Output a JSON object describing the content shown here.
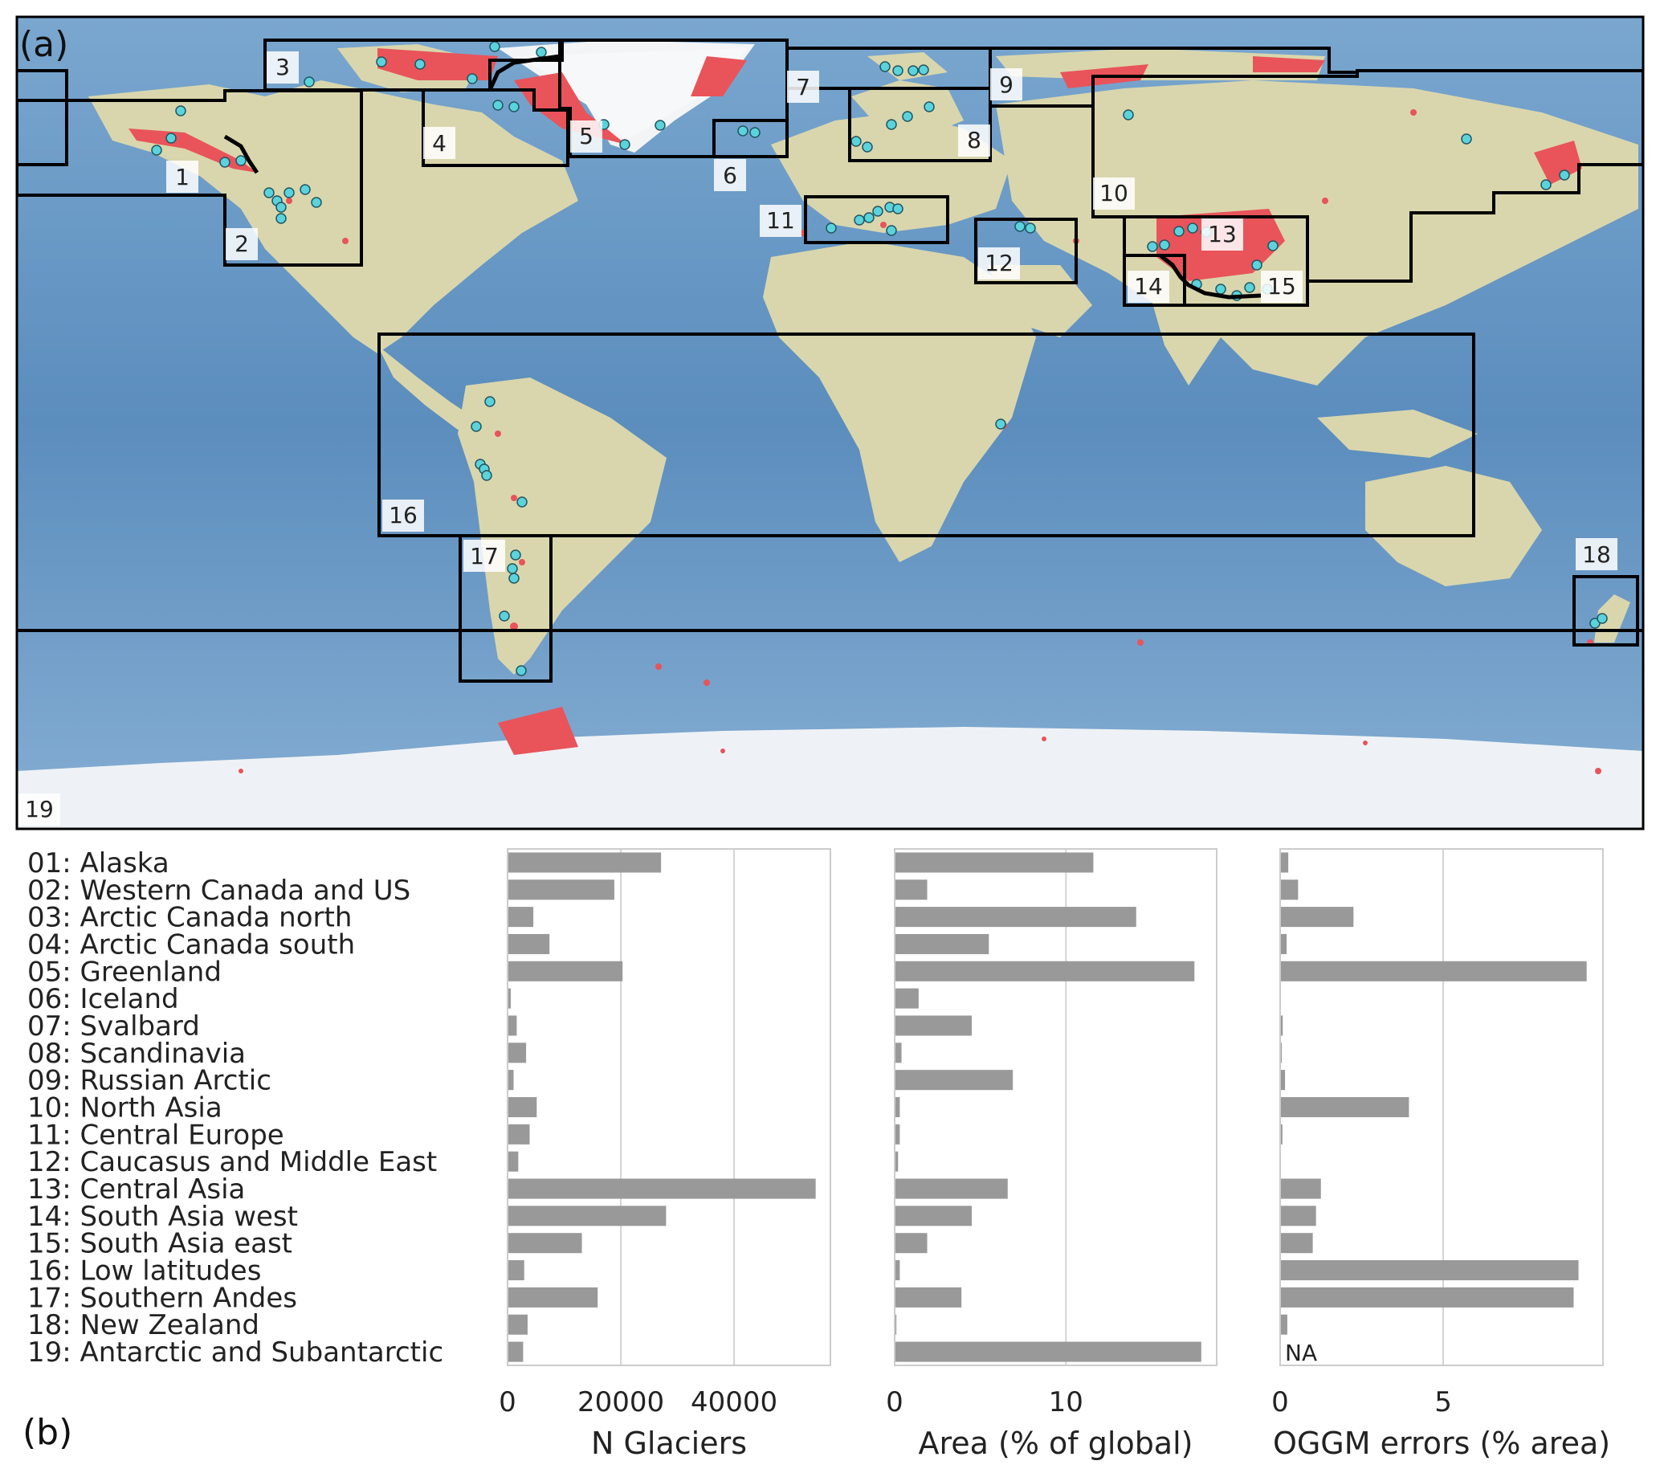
{
  "panel_a_label": "(a)",
  "panel_b_label": "(b)",
  "map_regions": [
    "1",
    "2",
    "3",
    "4",
    "5",
    "6",
    "7",
    "8",
    "9",
    "10",
    "11",
    "12",
    "13",
    "14",
    "15",
    "16",
    "17",
    "18",
    "19"
  ],
  "colors": {
    "ocean": "#5f8fbd",
    "land": "#d8d7b0",
    "ice": "#eef2f6",
    "glacier": "#e8545a",
    "site": "#5ad3dc",
    "bar": "#999999",
    "grid": "#d4d4d4",
    "frame": "#cccccc"
  },
  "chart_data": {
    "type": "bar",
    "orientation": "horizontal",
    "categories": [
      "01: Alaska",
      "02: Western Canada and US",
      "03: Arctic Canada north",
      "04: Arctic Canada south",
      "05: Greenland",
      "06: Iceland",
      "07: Svalbard",
      "08: Scandinavia",
      "09: Russian Arctic",
      "10: North Asia",
      "11: Central Europe",
      "12: Caucasus and Middle East",
      "13: Central Asia",
      "14: South Asia  west",
      "15: South Asia east",
      "16: Low latitudes",
      "17: Southern Andes",
      "18: New Zealand",
      "19: Antarctic and Subantarctic"
    ],
    "series": [
      {
        "name": "N Glaciers",
        "xlabel": "N Glaciers",
        "xlim": [
          0,
          57000
        ],
        "ticks": [
          0,
          20000,
          40000
        ],
        "tick_labels": [
          "0",
          "20000",
          "40000"
        ],
        "values": [
          27100,
          18850,
          4550,
          7400,
          20300,
          570,
          1620,
          3270,
          1070,
          5150,
          3900,
          1890,
          54400,
          27990,
          13120,
          2940,
          15910,
          3540,
          2750
        ]
      },
      {
        "name": "Area (% of global)",
        "xlabel": "Area (% of global)",
        "xlim": [
          0,
          18.8
        ],
        "ticks": [
          0,
          10
        ],
        "tick_labels": [
          "0",
          "10"
        ],
        "values": [
          11.6,
          1.9,
          14.1,
          5.5,
          17.5,
          1.4,
          4.5,
          0.4,
          6.9,
          0.3,
          0.3,
          0.2,
          6.6,
          4.5,
          1.9,
          0.3,
          3.9,
          0.1,
          17.9
        ]
      },
      {
        "name": "OGGM errors (% area)",
        "xlabel": "OGGM errors (% area)",
        "xlim": [
          0,
          9.9
        ],
        "ticks": [
          0,
          5
        ],
        "tick_labels": [
          "0",
          "5"
        ],
        "values": [
          0.25,
          0.55,
          2.25,
          0.2,
          9.4,
          0.0,
          0.08,
          0.05,
          0.15,
          3.95,
          0.07,
          0.0,
          1.25,
          1.1,
          1.0,
          9.15,
          9.0,
          0.22,
          null
        ],
        "annotations": [
          {
            "category": "19: Antarctic and Subantarctic",
            "text": "NA"
          }
        ]
      }
    ]
  }
}
